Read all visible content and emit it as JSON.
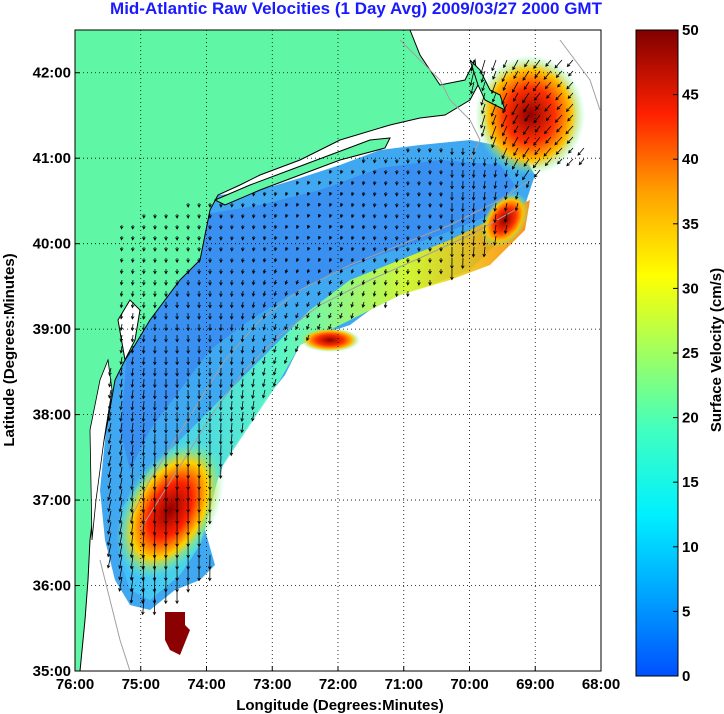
{
  "title": "Mid-Atlantic Raw Velocities (1 Day Avg) 2009/03/27 2000 GMT",
  "map": {
    "xlabel": "Longitude (Degrees:Minutes)",
    "ylabel": "Latitude (Degrees:Minutes)",
    "lon_range": [
      -76,
      -68
    ],
    "lat_range": [
      35,
      42.5
    ],
    "x_ticks": [
      {
        "value": -76,
        "label": "76:00"
      },
      {
        "value": -75,
        "label": "75:00"
      },
      {
        "value": -74,
        "label": "74:00"
      },
      {
        "value": -73,
        "label": "73:00"
      },
      {
        "value": -72,
        "label": "72:00"
      },
      {
        "value": -71,
        "label": "71:00"
      },
      {
        "value": -70,
        "label": "70:00"
      },
      {
        "value": -69,
        "label": "69:00"
      },
      {
        "value": -68,
        "label": "68:00"
      }
    ],
    "y_ticks": [
      {
        "value": 35,
        "label": "35:00"
      },
      {
        "value": 36,
        "label": "36:00"
      },
      {
        "value": 37,
        "label": "37:00"
      },
      {
        "value": 38,
        "label": "38:00"
      },
      {
        "value": 39,
        "label": "39:00"
      },
      {
        "value": 40,
        "label": "40:00"
      },
      {
        "value": 41,
        "label": "41:00"
      },
      {
        "value": 42,
        "label": "42:00"
      }
    ],
    "grid": "dotted",
    "land_color": "#5ff7a6",
    "coastline_color": "#000000",
    "bathymetry_color": "#a0a0a0",
    "arrow_color": "#000000"
  },
  "colorbar": {
    "label": "Surface Velocity (cm/s)",
    "range": [
      0,
      50
    ],
    "ticks": [
      {
        "value": 0,
        "label": "0"
      },
      {
        "value": 5,
        "label": "5"
      },
      {
        "value": 10,
        "label": "10"
      },
      {
        "value": 15,
        "label": "15"
      },
      {
        "value": 20,
        "label": "20"
      },
      {
        "value": 25,
        "label": "25"
      },
      {
        "value": 30,
        "label": "30"
      },
      {
        "value": 35,
        "label": "35"
      },
      {
        "value": 40,
        "label": "40"
      },
      {
        "value": 45,
        "label": "45"
      },
      {
        "value": 50,
        "label": "50"
      }
    ],
    "colormap": "jet"
  }
}
